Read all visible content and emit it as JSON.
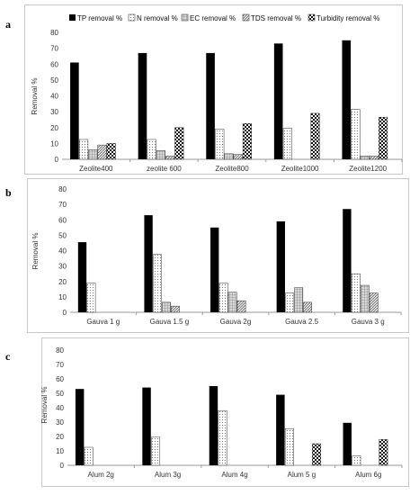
{
  "legend": {
    "entries": [
      "TP removal %",
      "N removal %",
      "EC removal %",
      "TDS removal %",
      "Turbidity removal %"
    ]
  },
  "chart_data": [
    {
      "panel": "a",
      "type": "bar",
      "ylabel": "Removal %",
      "ylim": [
        0,
        80
      ],
      "yticks": [
        0,
        10,
        20,
        30,
        40,
        50,
        60,
        70,
        80
      ],
      "categories": [
        "Zeolite400",
        "zeolite 600",
        "Zeolite800",
        "Zeolite1000",
        "Zeolite1200"
      ],
      "series": [
        {
          "name": "TP removal %",
          "values": [
            61,
            67,
            67,
            73,
            75
          ]
        },
        {
          "name": "N removal %",
          "values": [
            12.5,
            12.5,
            19,
            19.5,
            31.5
          ]
        },
        {
          "name": "EC removal %",
          "values": [
            6,
            5.5,
            3.5,
            0,
            2
          ]
        },
        {
          "name": "TDS removal %",
          "values": [
            9,
            2,
            3,
            0,
            2
          ]
        },
        {
          "name": "Turbidity removal %",
          "values": [
            10,
            20,
            22.5,
            29,
            26.5
          ]
        }
      ]
    },
    {
      "panel": "b",
      "type": "bar",
      "ylabel": "Removal %",
      "ylim": [
        0,
        80
      ],
      "yticks": [
        0,
        10,
        20,
        30,
        40,
        50,
        60,
        70,
        80
      ],
      "categories": [
        "Gauva 1 g",
        "Gauva 1.5 g",
        "Gauva 2g",
        "Gauva 2.5",
        "Gauva 3 g"
      ],
      "series": [
        {
          "name": "TP removal %",
          "values": [
            45.5,
            63,
            55,
            59,
            67
          ]
        },
        {
          "name": "N removal %",
          "values": [
            19,
            37.5,
            19,
            12.5,
            25
          ]
        },
        {
          "name": "EC removal %",
          "values": [
            0,
            6.5,
            13,
            16,
            17.5
          ]
        },
        {
          "name": "TDS removal %",
          "values": [
            0,
            4,
            7.5,
            6.5,
            12.5
          ]
        },
        {
          "name": "Turbidity removal %",
          "values": [
            0,
            0,
            0,
            0,
            0
          ]
        }
      ]
    },
    {
      "panel": "c",
      "type": "bar",
      "ylabel": "Removal %",
      "ylim": [
        0,
        80
      ],
      "yticks": [
        0,
        10,
        20,
        30,
        40,
        50,
        60,
        70,
        80
      ],
      "categories": [
        "Alum 2g",
        "Alum 3g",
        "Alum 4g",
        "Alum 5 g",
        "Alum 6g"
      ],
      "series": [
        {
          "name": "TP removal %",
          "values": [
            53,
            54,
            55,
            49,
            29.5
          ]
        },
        {
          "name": "N removal %",
          "values": [
            12.5,
            19.5,
            38,
            25.5,
            6.5
          ]
        },
        {
          "name": "EC removal %",
          "values": [
            0,
            0,
            0,
            0,
            0
          ]
        },
        {
          "name": "TDS removal %",
          "values": [
            0,
            0,
            0,
            0,
            0
          ]
        },
        {
          "name": "Turbidity removal %",
          "values": [
            0,
            0,
            0,
            15,
            18
          ]
        }
      ]
    }
  ]
}
